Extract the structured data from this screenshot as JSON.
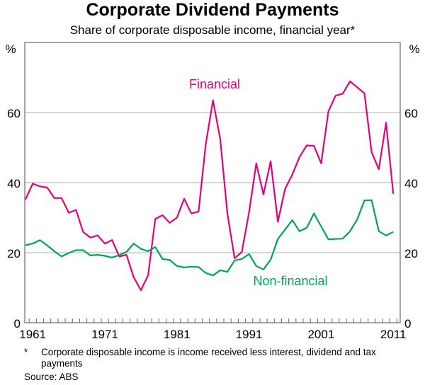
{
  "chart_data": {
    "type": "line",
    "title": "Corporate Dividend Payments",
    "subtitle": "Share of corporate disposable income, financial year*",
    "ylabel_left": "%",
    "ylabel_right": "%",
    "ylim": [
      0,
      80
    ],
    "yticks": [
      0,
      20,
      40,
      60
    ],
    "xticks": [
      1961,
      1971,
      1981,
      1991,
      2001,
      2011
    ],
    "xlim": [
      1959.6,
      2012.5
    ],
    "grid": true,
    "x": [
      1960,
      1961,
      1962,
      1963,
      1964,
      1965,
      1966,
      1967,
      1968,
      1969,
      1970,
      1971,
      1972,
      1973,
      1974,
      1975,
      1976,
      1977,
      1978,
      1979,
      1980,
      1981,
      1982,
      1983,
      1984,
      1985,
      1986,
      1987,
      1988,
      1989,
      1990,
      1991,
      1992,
      1993,
      1994,
      1995,
      1996,
      1997,
      1998,
      1999,
      2000,
      2001,
      2002,
      2003,
      2004,
      2005,
      2006,
      2007,
      2008,
      2009,
      2010,
      2011
    ],
    "series": [
      {
        "name": "Financial",
        "color": "#e5007d",
        "values": [
          35.2,
          39.7,
          38.9,
          38.6,
          35.6,
          35.6,
          31.4,
          32.2,
          25.9,
          24.3,
          24.9,
          22.6,
          23.6,
          18.9,
          19.4,
          13.0,
          9.3,
          13.5,
          29.6,
          30.7,
          28.5,
          30.0,
          35.4,
          31.2,
          31.7,
          51.0,
          63.5,
          52.4,
          31.2,
          18.4,
          20.2,
          31.5,
          45.5,
          36.6,
          46.1,
          28.8,
          38.2,
          42.3,
          47.3,
          50.6,
          50.5,
          45.5,
          60.3,
          64.8,
          65.4,
          68.9,
          67.2,
          65.5,
          48.7,
          43.8,
          57.1,
          36.8
        ]
      },
      {
        "name": "Non-financial",
        "color": "#00a651",
        "values": [
          22.1,
          22.6,
          23.6,
          22.1,
          20.4,
          18.9,
          19.9,
          20.7,
          20.7,
          19.2,
          19.4,
          19.1,
          18.6,
          19.3,
          20.2,
          22.6,
          21.1,
          20.4,
          21.6,
          18.2,
          17.9,
          16.2,
          15.8,
          16.0,
          15.9,
          14.2,
          13.5,
          15.0,
          14.5,
          17.8,
          18.2,
          19.6,
          16.2,
          15.2,
          18.0,
          23.9,
          26.6,
          29.3,
          26.1,
          27.1,
          31.2,
          27.5,
          23.8,
          23.9,
          24.0,
          26.1,
          29.5,
          34.9,
          35.0,
          26.1,
          24.9,
          25.9
        ]
      }
    ],
    "footnote_marker": "*",
    "footnote": "Corporate disposable income is income received less interest, dividend and tax payments",
    "source": "Source: ABS"
  }
}
